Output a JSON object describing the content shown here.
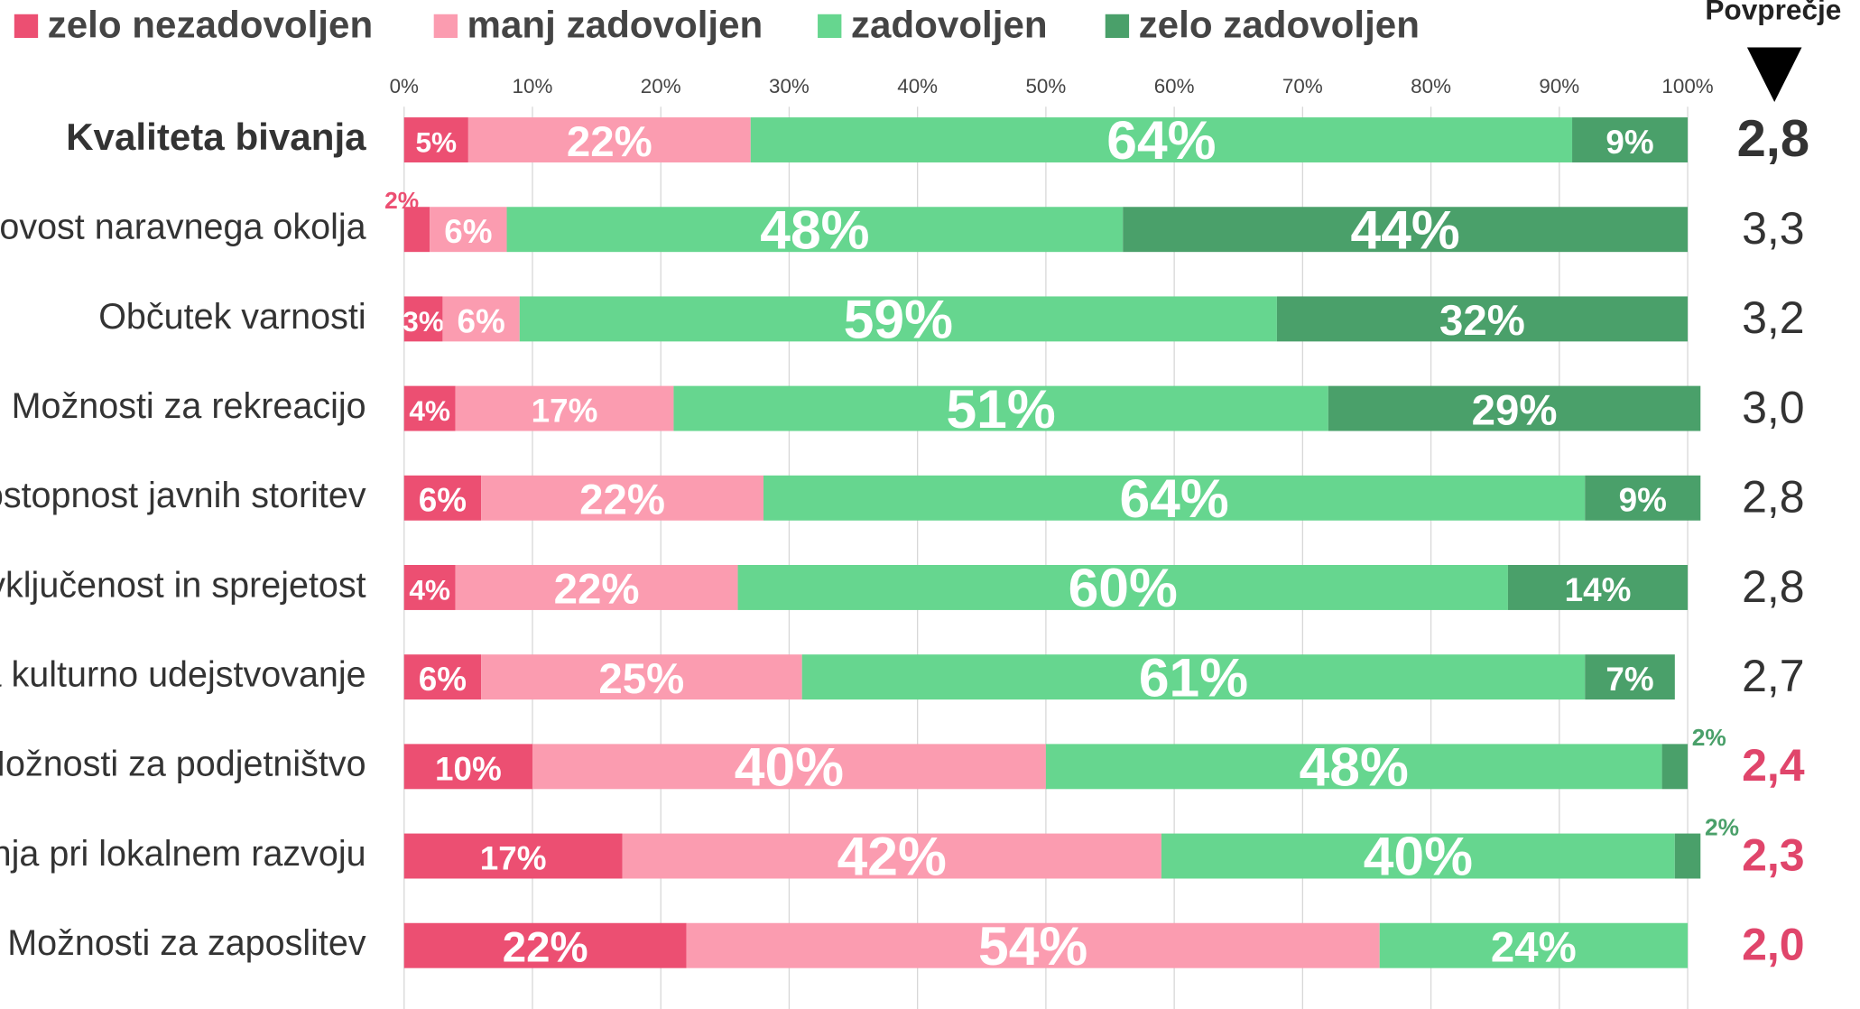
{
  "chart_data": {
    "type": "stacked-bar-horizontal",
    "categories": [
      "Kvaliteta bivanja",
      "kovost naravnega okolja",
      "Občutek varnosti",
      "Možnosti za rekreacijo",
      "ostopnost javnih storitev",
      "vključenost in sprejetost",
      "a kulturno udejstvovanje",
      "Možnosti za podjetništvo",
      "nja pri lokalnem razvoju",
      "Možnosti za zaposlitev"
    ],
    "series": [
      {
        "name": "zelo nezadovoljen",
        "color": "#ec4f72",
        "values": [
          5,
          2,
          3,
          4,
          6,
          4,
          6,
          10,
          17,
          22
        ],
        "value_labels": [
          "5%",
          "2%",
          "3%",
          "4%",
          "6%",
          "4%",
          "6%",
          "10%",
          "17%",
          "22%"
        ]
      },
      {
        "name": "manj zadovoljen",
        "color": "#fb9cb0",
        "values": [
          22,
          6,
          6,
          17,
          22,
          22,
          25,
          40,
          42,
          54
        ],
        "value_labels": [
          "22%",
          "6%",
          "6%",
          "17%",
          "22%",
          "22%",
          "25%",
          "40%",
          "42%",
          "54%"
        ]
      },
      {
        "name": "zadovoljen",
        "color": "#66d68f",
        "values": [
          64,
          48,
          59,
          51,
          64,
          60,
          61,
          48,
          40,
          24
        ],
        "value_labels": [
          "64%",
          "48%",
          "59%",
          "51%",
          "64%",
          "60%",
          "61%",
          "48%",
          "40%",
          "24%"
        ]
      },
      {
        "name": "zelo zadovoljen",
        "color": "#4aa06a",
        "values": [
          9,
          44,
          32,
          29,
          9,
          14,
          7,
          2,
          2,
          null
        ],
        "value_labels": [
          "9%",
          "44%",
          "32%",
          "29%",
          "9%",
          "14%",
          "7%",
          "2%",
          "2%",
          null
        ]
      }
    ],
    "average_title": "Povprečje",
    "averages": [
      2.8,
      3.3,
      3.2,
      3.0,
      2.8,
      2.8,
      2.7,
      2.4,
      2.3,
      2.0
    ],
    "average_labels": [
      "2,8",
      "3,3",
      "3,2",
      "3,0",
      "2,8",
      "2,8",
      "2,7",
      "2,4",
      "2,3",
      "2,0"
    ],
    "average_colors": [
      "#333333",
      "#333333",
      "#333333",
      "#333333",
      "#333333",
      "#333333",
      "#333333",
      "#e0456b",
      "#e0456b",
      "#e0456b"
    ],
    "xlim": [
      0,
      100
    ],
    "xticks": [
      {
        "value": 0,
        "label": "0%"
      },
      {
        "value": 10,
        "label": "10%"
      },
      {
        "value": 20,
        "label": "20%"
      },
      {
        "value": 30,
        "label": "30%"
      },
      {
        "value": 40,
        "label": "40%"
      },
      {
        "value": 50,
        "label": "50%"
      },
      {
        "value": 60,
        "label": "60%"
      },
      {
        "value": 70,
        "label": "70%"
      },
      {
        "value": 80,
        "label": "80%"
      },
      {
        "value": 90,
        "label": "90%"
      },
      {
        "value": 100,
        "label": "100%"
      }
    ],
    "grid": true,
    "legend": "top-left"
  }
}
